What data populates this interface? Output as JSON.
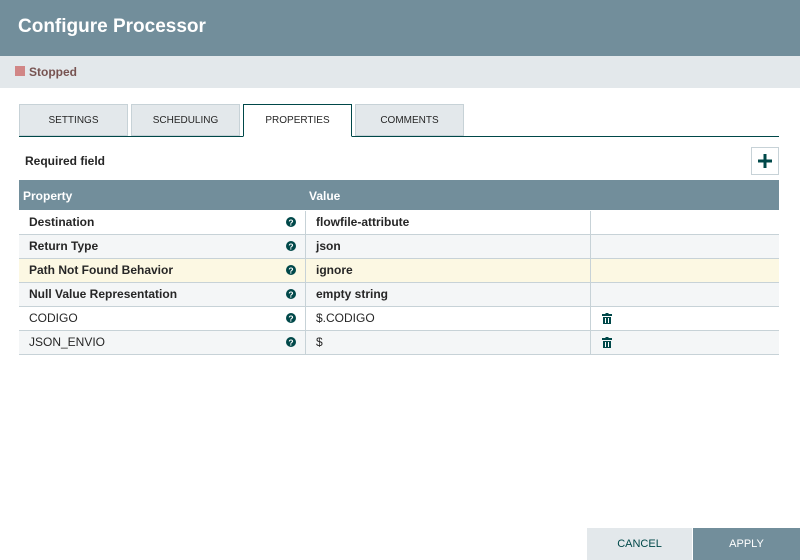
{
  "header": {
    "title": "Configure Processor",
    "status": "Stopped"
  },
  "tabs": {
    "items": [
      "SETTINGS",
      "SCHEDULING",
      "PROPERTIES",
      "COMMENTS"
    ],
    "active": 2
  },
  "required_field": "Required field",
  "table": {
    "columns": [
      "Property",
      "Value"
    ],
    "selected_row": 2,
    "rows": [
      {
        "property": "Destination",
        "value": "flowfile-attribute",
        "required": true
      },
      {
        "property": "Return Type",
        "value": "json",
        "required": true
      },
      {
        "property": "Path Not Found Behavior",
        "value": "ignore",
        "required": true
      },
      {
        "property": "Null Value Representation",
        "value": "empty string",
        "required": true
      },
      {
        "property": "CODIGO",
        "value": "$.CODIGO",
        "required": false
      },
      {
        "property": "JSON_ENVIO",
        "value": "$",
        "required": false
      }
    ]
  },
  "buttons": {
    "cancel": "CANCEL",
    "apply": "APPLY"
  }
}
